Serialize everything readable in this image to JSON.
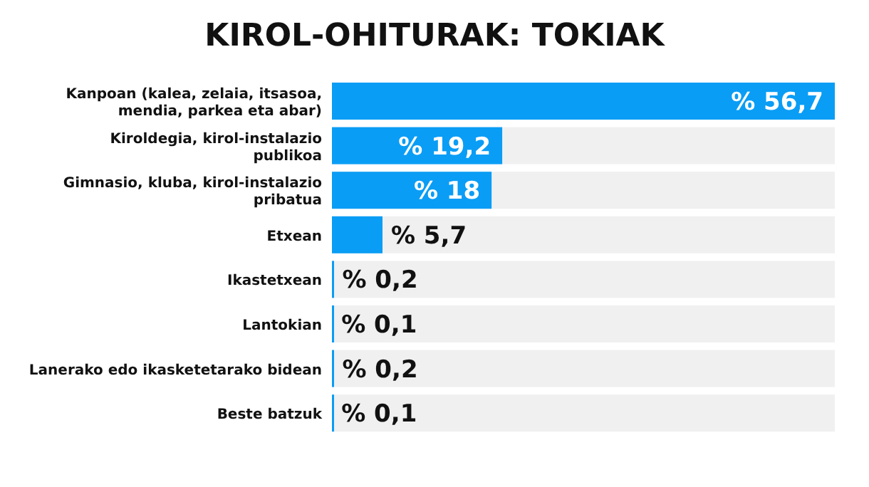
{
  "chart_data": {
    "type": "bar",
    "orientation": "horizontal",
    "title": "KIROL-OHITURAK: TOKIAK",
    "categories": [
      "Kanpoan (kalea, zelaia, itsasoa, mendia, parkea eta abar)",
      "Kiroldegia, kirol-instalazio publikoa",
      "Gimnasio, kluba, kirol-instalazio pribatua",
      "Etxean",
      "Ikastetxean",
      "Lantokian",
      "Lanerako edo ikasketetarako bidean",
      "Beste batzuk"
    ],
    "values": [
      56.7,
      19.2,
      18,
      5.7,
      0.2,
      0.1,
      0.2,
      0.1
    ],
    "value_labels": [
      "% 56,7",
      "% 19,2",
      "% 18",
      "% 5,7",
      "% 0,2",
      "% 0,1",
      "% 0,2",
      "% 0,1"
    ],
    "color": "#0a9df5"
  }
}
